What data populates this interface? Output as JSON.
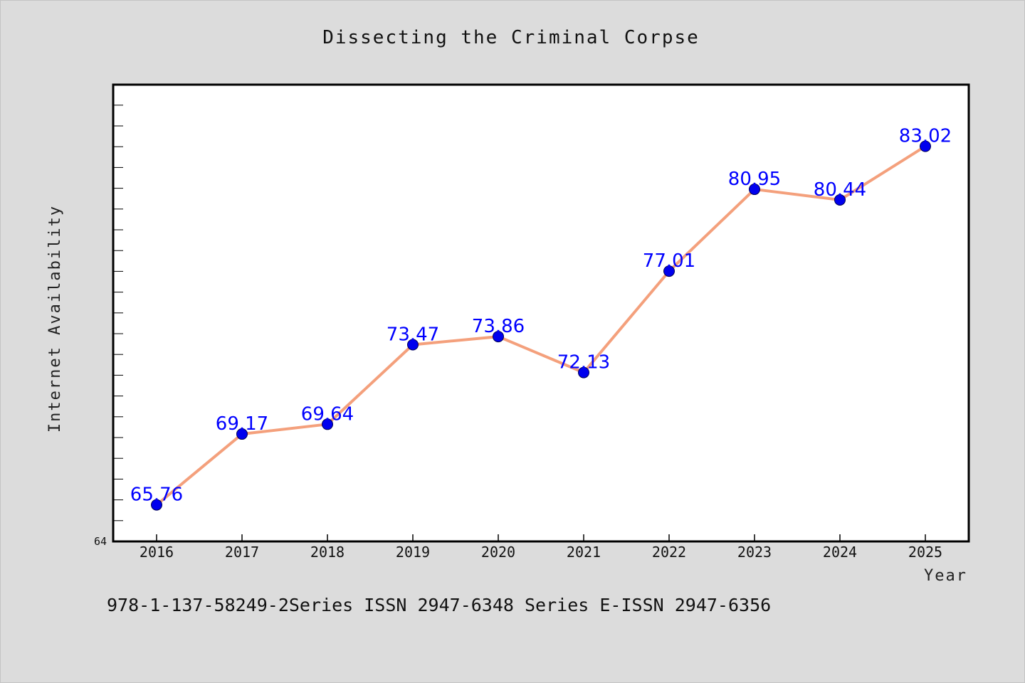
{
  "chart_data": {
    "type": "line",
    "title": "Dissecting the Criminal Corpse",
    "xlabel": "Year",
    "ylabel": "Internet Availability",
    "categories": [
      "2016",
      "2017",
      "2018",
      "2019",
      "2020",
      "2021",
      "2022",
      "2023",
      "2024",
      "2025"
    ],
    "series": [
      {
        "values": [
          65.76,
          69.17,
          69.64,
          73.47,
          73.86,
          72.13,
          77.01,
          80.95,
          80.44,
          83.02
        ]
      }
    ],
    "data_labels": [
      "65.76",
      "69.17",
      "69.64",
      "73.47",
      "73.86",
      "72.13",
      "77.01",
      "80.95",
      "80.44",
      "83.02"
    ],
    "ylim": [
      64,
      86
    ],
    "y_tick_labels_shown": [
      "64"
    ],
    "grid": false,
    "legend": "none",
    "colors": {
      "line": "#f4a07c",
      "marker": "#0000ee",
      "data_label": "#0000ff",
      "plot_background": "#ffffff",
      "page_background": "#dcdcdc"
    }
  },
  "footer": {
    "text": "978-1-137-58249-2Series ISSN 2947-6348 Series E-ISSN 2947-6356"
  }
}
